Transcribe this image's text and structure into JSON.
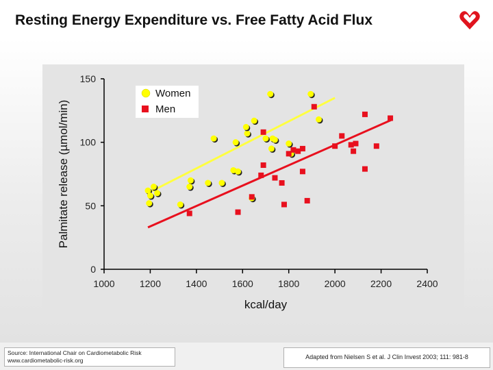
{
  "header": {
    "title": "Resting Energy Expenditure vs. Free Fatty Acid Flux",
    "logo_icon": "heart-ribbon-logo-icon",
    "logo_color": "#e0141e"
  },
  "footer": {
    "source_line1": "Source: International Chair on Cardiometabolic Risk",
    "source_line2": "www.cardiometabolic-risk.org",
    "citation": "Adapted from Nielsen S et al. J Clin Invest 2003; 111: 981-8"
  },
  "chart_data": {
    "type": "scatter",
    "title": "",
    "xlabel": "kcal/day",
    "ylabel": "Palmitate release (µmol/min)",
    "xlim": [
      1000,
      2400
    ],
    "ylim": [
      0,
      150
    ],
    "x_ticks": [
      "1000",
      "1200",
      "1400",
      "1600",
      "1800",
      "2000",
      "2200",
      "2400"
    ],
    "y_ticks": [
      "0",
      "50",
      "100",
      "150"
    ],
    "legend_position": "top-left",
    "grid": false,
    "series": [
      {
        "name": "Women",
        "color": "#ffff00",
        "marker": "circle",
        "points": [
          [
            1190,
            62
          ],
          [
            1200,
            58
          ],
          [
            1215,
            65
          ],
          [
            1230,
            60
          ],
          [
            1195,
            52
          ],
          [
            1330,
            51
          ],
          [
            1375,
            70
          ],
          [
            1370,
            65
          ],
          [
            1450,
            68
          ],
          [
            1475,
            103
          ],
          [
            1510,
            68
          ],
          [
            1560,
            78
          ],
          [
            1570,
            100
          ],
          [
            1580,
            77
          ],
          [
            1620,
            107
          ],
          [
            1615,
            112
          ],
          [
            1640,
            56
          ],
          [
            1650,
            117
          ],
          [
            1700,
            103
          ],
          [
            1720,
            138
          ],
          [
            1725,
            95
          ],
          [
            1730,
            103
          ],
          [
            1740,
            102
          ],
          [
            1800,
            99
          ],
          [
            1810,
            91
          ],
          [
            1895,
            138
          ],
          [
            1930,
            118
          ]
        ]
      },
      {
        "name": "Men",
        "color": "#e8101e",
        "marker": "square",
        "points": [
          [
            1370,
            44
          ],
          [
            1580,
            45
          ],
          [
            1640,
            57
          ],
          [
            1690,
            108
          ],
          [
            1690,
            82
          ],
          [
            1680,
            74
          ],
          [
            1740,
            72
          ],
          [
            1770,
            68
          ],
          [
            1780,
            51
          ],
          [
            1800,
            91
          ],
          [
            1820,
            94
          ],
          [
            1840,
            93
          ],
          [
            1860,
            95
          ],
          [
            1860,
            77
          ],
          [
            1880,
            54
          ],
          [
            1910,
            128
          ],
          [
            2000,
            97
          ],
          [
            2030,
            105
          ],
          [
            2070,
            98
          ],
          [
            2080,
            93
          ],
          [
            2090,
            99
          ],
          [
            2130,
            122
          ],
          [
            2130,
            79
          ],
          [
            2180,
            97
          ],
          [
            2240,
            119
          ]
        ]
      }
    ],
    "trend_lines": [
      {
        "series": "Women",
        "color": "#ffff40",
        "x": [
          1190,
          2000
        ],
        "y": [
          60,
          135
        ]
      },
      {
        "series": "Men",
        "color": "#e8101e",
        "x": [
          1190,
          2250
        ],
        "y": [
          33,
          118
        ]
      }
    ]
  }
}
